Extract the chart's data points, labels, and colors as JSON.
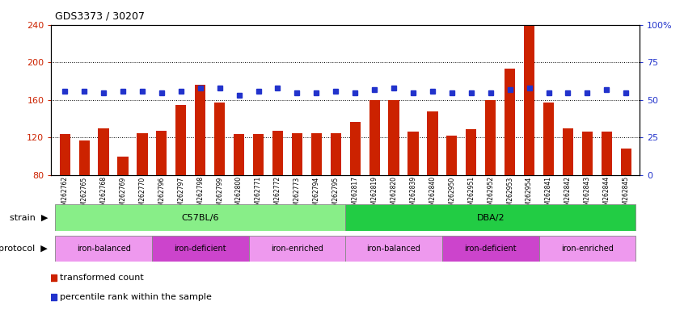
{
  "title": "GDS3373 / 30207",
  "samples": [
    "GSM262762",
    "GSM262765",
    "GSM262768",
    "GSM262769",
    "GSM262770",
    "GSM262796",
    "GSM262797",
    "GSM262798",
    "GSM262799",
    "GSM262800",
    "GSM262771",
    "GSM262772",
    "GSM262773",
    "GSM262794",
    "GSM262795",
    "GSM262817",
    "GSM262819",
    "GSM262820",
    "GSM262839",
    "GSM262840",
    "GSM262950",
    "GSM262951",
    "GSM262952",
    "GSM262953",
    "GSM262954",
    "GSM262841",
    "GSM262842",
    "GSM262843",
    "GSM262844",
    "GSM262845"
  ],
  "bar_values": [
    124,
    117,
    130,
    100,
    125,
    127,
    155,
    176,
    157,
    124,
    124,
    127,
    125,
    125,
    125,
    137,
    160,
    160,
    126,
    148,
    122,
    129,
    160,
    193,
    240,
    157,
    130,
    126,
    126,
    108
  ],
  "percentile_values": [
    56,
    56,
    55,
    56,
    56,
    55,
    56,
    58,
    58,
    53,
    56,
    58,
    55,
    55,
    56,
    55,
    57,
    58,
    55,
    56,
    55,
    55,
    55,
    57,
    58,
    55,
    55,
    55,
    57,
    55
  ],
  "ylim_left": [
    80,
    240
  ],
  "ylim_right": [
    0,
    100
  ],
  "yticks_left": [
    80,
    120,
    160,
    200,
    240
  ],
  "yticks_right": [
    0,
    25,
    50,
    75,
    100
  ],
  "bar_color": "#cc2200",
  "dot_color": "#2233cc",
  "chart_bg": "#ffffff",
  "strain_groups": [
    {
      "label": "C57BL/6",
      "start": 0,
      "end": 15,
      "color": "#88ee88"
    },
    {
      "label": "DBA/2",
      "start": 15,
      "end": 30,
      "color": "#22cc44"
    }
  ],
  "protocol_groups": [
    {
      "label": "iron-balanced",
      "start": 0,
      "end": 5,
      "color": "#ee99ee"
    },
    {
      "label": "iron-deficient",
      "start": 5,
      "end": 10,
      "color": "#cc44cc"
    },
    {
      "label": "iron-enriched",
      "start": 10,
      "end": 15,
      "color": "#ee99ee"
    },
    {
      "label": "iron-balanced",
      "start": 15,
      "end": 20,
      "color": "#ee99ee"
    },
    {
      "label": "iron-deficient",
      "start": 20,
      "end": 25,
      "color": "#cc44cc"
    },
    {
      "label": "iron-enriched",
      "start": 25,
      "end": 30,
      "color": "#ee99ee"
    }
  ],
  "legend_items": [
    {
      "label": "transformed count",
      "color": "#cc2200"
    },
    {
      "label": "percentile rank within the sample",
      "color": "#2233cc"
    }
  ]
}
